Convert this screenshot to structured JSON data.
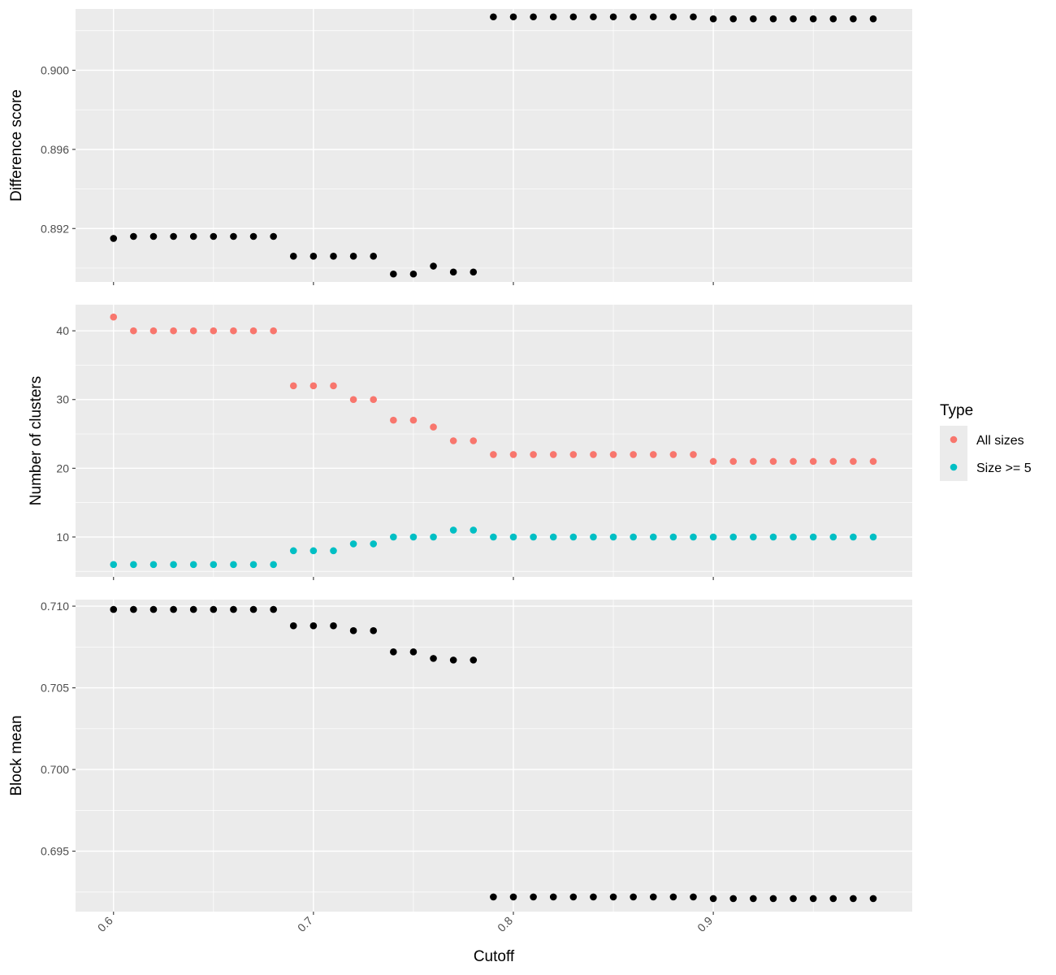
{
  "chart_data": [
    {
      "type": "scatter",
      "ylabel": "Difference score",
      "ylim": [
        0.8893,
        0.9031
      ],
      "yticks": [
        0.892,
        0.896,
        0.9
      ],
      "ytick_labels": [
        "0.892",
        "0.896",
        "0.900"
      ],
      "series": [
        {
          "color": "#000000",
          "x": [
            0.6,
            0.61,
            0.62,
            0.63,
            0.64,
            0.65,
            0.66,
            0.67,
            0.68,
            0.69,
            0.7,
            0.71,
            0.72,
            0.73,
            0.74,
            0.75,
            0.76,
            0.77,
            0.78,
            0.79,
            0.8,
            0.81,
            0.82,
            0.83,
            0.84,
            0.85,
            0.86,
            0.87,
            0.88,
            0.89,
            0.9,
            0.91,
            0.92,
            0.93,
            0.94,
            0.95,
            0.96,
            0.97,
            0.98
          ],
          "y": [
            0.8915,
            0.8916,
            0.8916,
            0.8916,
            0.8916,
            0.8916,
            0.8916,
            0.8916,
            0.8916,
            0.8906,
            0.8906,
            0.8906,
            0.8906,
            0.8906,
            0.8897,
            0.8897,
            0.8901,
            0.8898,
            0.8898,
            0.9027,
            0.9027,
            0.9027,
            0.9027,
            0.9027,
            0.9027,
            0.9027,
            0.9027,
            0.9027,
            0.9027,
            0.9027,
            0.9026,
            0.9026,
            0.9026,
            0.9026,
            0.9026,
            0.9026,
            0.9026,
            0.9026,
            0.9026
          ]
        }
      ]
    },
    {
      "type": "scatter",
      "ylabel": "Number of clusters",
      "ylim": [
        4.2,
        43.8
      ],
      "yticks": [
        10,
        20,
        30,
        40
      ],
      "ytick_labels": [
        "10",
        "20",
        "30",
        "40"
      ],
      "series": [
        {
          "name": "All sizes",
          "color": "#F8766D",
          "x": [
            0.6,
            0.61,
            0.62,
            0.63,
            0.64,
            0.65,
            0.66,
            0.67,
            0.68,
            0.69,
            0.7,
            0.71,
            0.72,
            0.73,
            0.74,
            0.75,
            0.76,
            0.77,
            0.78,
            0.79,
            0.8,
            0.81,
            0.82,
            0.83,
            0.84,
            0.85,
            0.86,
            0.87,
            0.88,
            0.89,
            0.9,
            0.91,
            0.92,
            0.93,
            0.94,
            0.95,
            0.96,
            0.97,
            0.98
          ],
          "y": [
            42,
            40,
            40,
            40,
            40,
            40,
            40,
            40,
            40,
            32,
            32,
            32,
            30,
            30,
            27,
            27,
            26,
            24,
            24,
            22,
            22,
            22,
            22,
            22,
            22,
            22,
            22,
            22,
            22,
            22,
            21,
            21,
            21,
            21,
            21,
            21,
            21,
            21,
            21
          ]
        },
        {
          "name": "Size >= 5",
          "color": "#00BFC4",
          "x": [
            0.6,
            0.61,
            0.62,
            0.63,
            0.64,
            0.65,
            0.66,
            0.67,
            0.68,
            0.69,
            0.7,
            0.71,
            0.72,
            0.73,
            0.74,
            0.75,
            0.76,
            0.77,
            0.78,
            0.79,
            0.8,
            0.81,
            0.82,
            0.83,
            0.84,
            0.85,
            0.86,
            0.87,
            0.88,
            0.89,
            0.9,
            0.91,
            0.92,
            0.93,
            0.94,
            0.95,
            0.96,
            0.97,
            0.98
          ],
          "y": [
            6,
            6,
            6,
            6,
            6,
            6,
            6,
            6,
            6,
            8,
            8,
            8,
            9,
            9,
            10,
            10,
            10,
            11,
            11,
            10,
            10,
            10,
            10,
            10,
            10,
            10,
            10,
            10,
            10,
            10,
            10,
            10,
            10,
            10,
            10,
            10,
            10,
            10,
            10
          ]
        }
      ]
    },
    {
      "type": "scatter",
      "ylabel": "Block mean",
      "ylim": [
        0.6913,
        0.7104
      ],
      "yticks": [
        0.695,
        0.7,
        0.705,
        0.71
      ],
      "ytick_labels": [
        "0.695",
        "0.700",
        "0.705",
        "0.710"
      ],
      "series": [
        {
          "color": "#000000",
          "x": [
            0.6,
            0.61,
            0.62,
            0.63,
            0.64,
            0.65,
            0.66,
            0.67,
            0.68,
            0.69,
            0.7,
            0.71,
            0.72,
            0.73,
            0.74,
            0.75,
            0.76,
            0.77,
            0.78,
            0.79,
            0.8,
            0.81,
            0.82,
            0.83,
            0.84,
            0.85,
            0.86,
            0.87,
            0.88,
            0.89,
            0.9,
            0.91,
            0.92,
            0.93,
            0.94,
            0.95,
            0.96,
            0.97,
            0.98
          ],
          "y": [
            0.7098,
            0.7098,
            0.7098,
            0.7098,
            0.7098,
            0.7098,
            0.7098,
            0.7098,
            0.7098,
            0.7088,
            0.7088,
            0.7088,
            0.7085,
            0.7085,
            0.7072,
            0.7072,
            0.7068,
            0.7067,
            0.7067,
            0.6922,
            0.6922,
            0.6922,
            0.6922,
            0.6922,
            0.6922,
            0.6922,
            0.6922,
            0.6922,
            0.6922,
            0.6922,
            0.6921,
            0.6921,
            0.6921,
            0.6921,
            0.6921,
            0.6921,
            0.6921,
            0.6921,
            0.6921
          ]
        }
      ]
    }
  ],
  "shared_x": {
    "xlabel": "Cutoff",
    "xlim": [
      0.581,
      0.9995
    ],
    "ticks": [
      0.6,
      0.7,
      0.8,
      0.9
    ],
    "tick_labels": [
      "0.6",
      "0.7",
      "0.8",
      "0.9"
    ],
    "tick_label_rotation": -45
  },
  "legend": {
    "title": "Type",
    "position": "right",
    "items": [
      {
        "label": "All sizes",
        "color": "#F8766D"
      },
      {
        "label": "Size >= 5",
        "color": "#00BFC4"
      }
    ]
  },
  "style": {
    "panel_background": "#EBEBEB",
    "grid_color": "#FFFFFF",
    "grid": true
  }
}
